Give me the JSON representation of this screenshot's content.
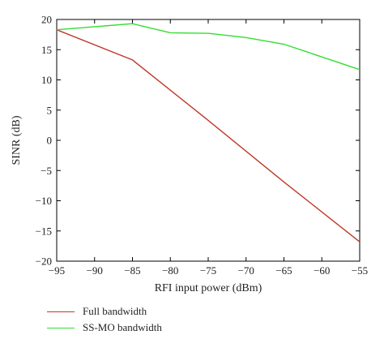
{
  "chart_data": {
    "type": "line",
    "title": "",
    "xlabel": "RFI input power (dBm)",
    "ylabel": "SINR (dB)",
    "xlim": [
      -95,
      -55
    ],
    "ylim": [
      -20,
      20
    ],
    "xticks": [
      -95,
      -90,
      -85,
      -80,
      -75,
      -70,
      -65,
      -60,
      -55
    ],
    "yticks": [
      -20,
      -15,
      -10,
      -5,
      0,
      5,
      10,
      15,
      20
    ],
    "grid": false,
    "legend_position": "bottom-left, below plot",
    "series": [
      {
        "name": "Full bandwidth",
        "color": "#c0392b",
        "x": [
          -95,
          -85,
          -75,
          -65,
          -55
        ],
        "y": [
          18.3,
          13.3,
          3.3,
          -6.9,
          -16.8
        ]
      },
      {
        "name": "SS-MO bandwidth",
        "color": "#33dd33",
        "x": [
          -95,
          -85,
          -80,
          -75,
          -70,
          -65,
          -55
        ],
        "y": [
          18.3,
          19.3,
          17.8,
          17.7,
          17.0,
          15.9,
          11.7
        ]
      }
    ]
  }
}
